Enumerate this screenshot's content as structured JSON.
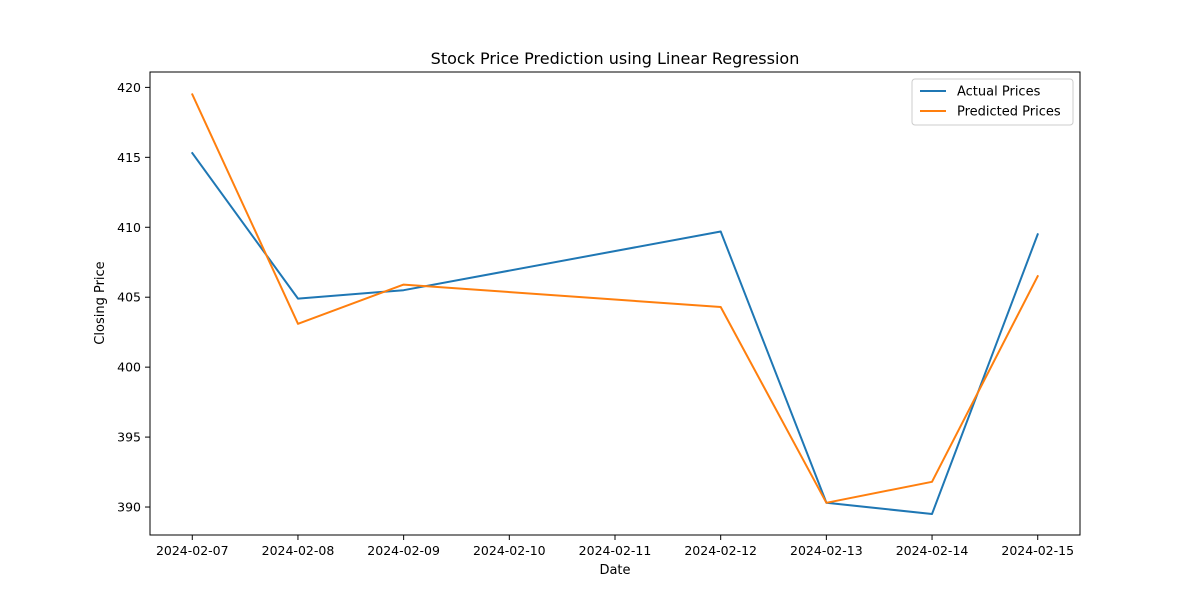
{
  "chart_data": {
    "type": "line",
    "title": "Stock Price Prediction using Linear Regression",
    "xlabel": "Date",
    "ylabel": "Closing Price",
    "x_ticks": [
      "2024-02-07",
      "2024-02-08",
      "2024-02-09",
      "2024-02-10",
      "2024-02-11",
      "2024-02-12",
      "2024-02-13",
      "2024-02-14",
      "2024-02-15"
    ],
    "y_ticks": [
      390,
      395,
      400,
      405,
      410,
      415,
      420
    ],
    "xlim": [
      "2024-02-06.6",
      "2024-02-15.4"
    ],
    "ylim": [
      388.0,
      421.1
    ],
    "grid": false,
    "legend_position": "top-right",
    "series": [
      {
        "name": "Actual Prices",
        "color": "#1f77b4",
        "x": [
          "2024-02-07",
          "2024-02-08",
          "2024-02-09",
          "2024-02-12",
          "2024-02-13",
          "2024-02-14",
          "2024-02-15"
        ],
        "y": [
          415.3,
          404.9,
          405.5,
          409.7,
          390.3,
          389.5,
          409.5
        ]
      },
      {
        "name": "Predicted Prices",
        "color": "#ff7f0e",
        "x": [
          "2024-02-07",
          "2024-02-08",
          "2024-02-09",
          "2024-02-12",
          "2024-02-13",
          "2024-02-14",
          "2024-02-15"
        ],
        "y": [
          419.5,
          403.1,
          405.9,
          404.3,
          390.3,
          391.8,
          406.5
        ]
      }
    ]
  }
}
